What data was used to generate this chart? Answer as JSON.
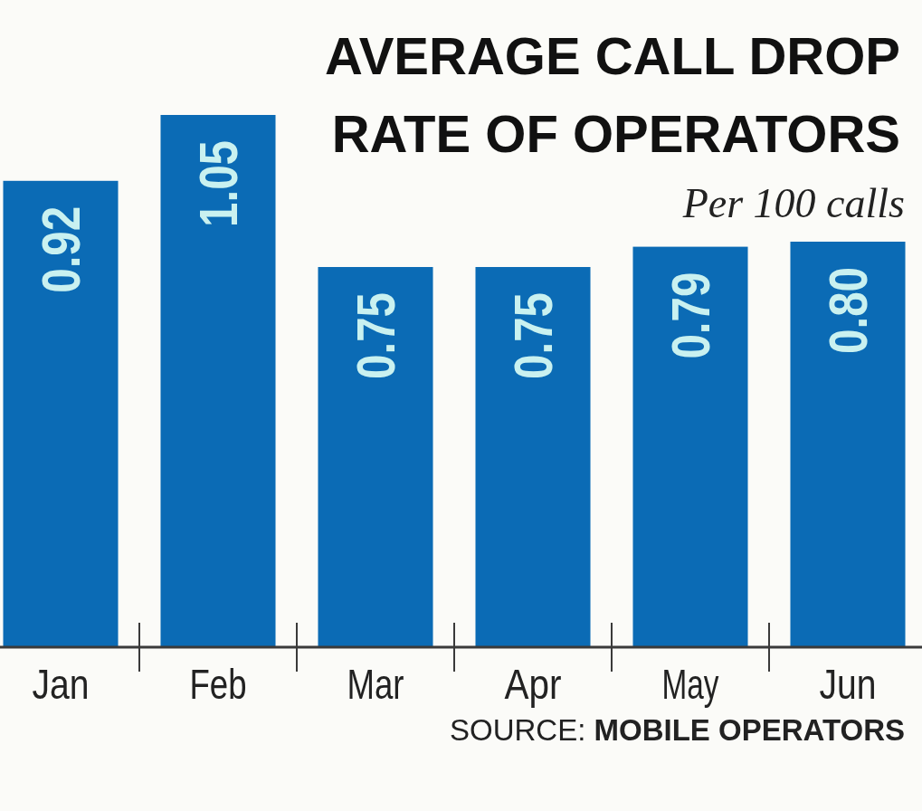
{
  "chart_data": {
    "type": "bar",
    "title": "AVERAGE CALL DROP RATE OF OPERATORS",
    "subtitle": "Per 100 calls",
    "categories": [
      "Jan",
      "Feb",
      "Mar",
      "Apr",
      "May",
      "Jun"
    ],
    "values": [
      0.92,
      1.05,
      0.75,
      0.75,
      0.79,
      0.8
    ],
    "value_labels": [
      "0.92",
      "1.05",
      "0.75",
      "0.75",
      "0.79",
      "0.80"
    ],
    "color": "#0b6bb5",
    "annotations": [
      "SOURCE: MOBILE OPERATORS"
    ]
  }
}
